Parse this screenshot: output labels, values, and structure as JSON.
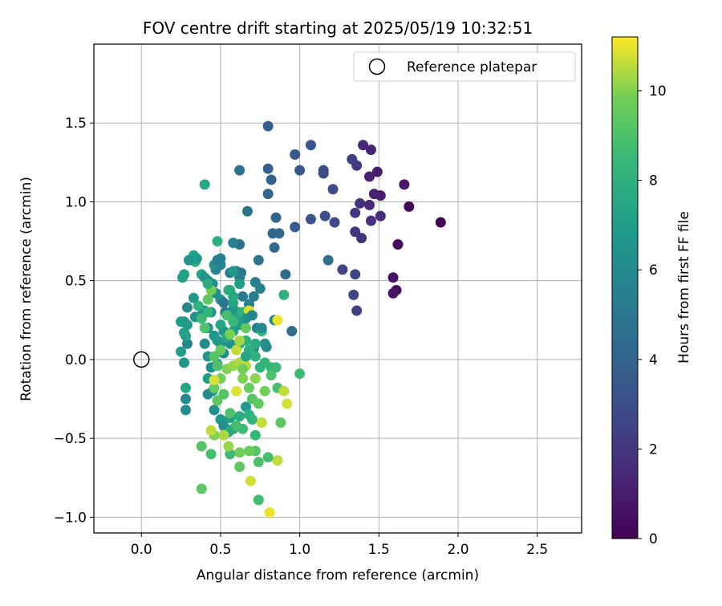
{
  "chart_data": {
    "type": "scatter",
    "title": "FOV centre drift starting at 2025/05/19 10:32:51",
    "xlabel": "Angular distance from reference (arcmin)",
    "ylabel": "Rotation from reference (arcmin)",
    "xlim": [
      -0.3,
      2.78
    ],
    "ylim": [
      -1.1,
      2.0
    ],
    "xticks": [
      0.0,
      0.5,
      1.0,
      1.5,
      2.0,
      2.5
    ],
    "xtick_labels": [
      "0.0",
      "0.5",
      "1.0",
      "1.5",
      "2.0",
      "2.5"
    ],
    "yticks": [
      -1.0,
      -0.5,
      0.0,
      0.5,
      1.0,
      1.5
    ],
    "ytick_labels": [
      "−1.0",
      "−0.5",
      "0.0",
      "0.5",
      "1.0",
      "1.5"
    ],
    "grid": true,
    "legend": {
      "placement": "top-right",
      "entries": [
        {
          "label": "Reference platepar",
          "marker": "open-circle"
        }
      ]
    },
    "reference_point": {
      "x": 0.0,
      "y": 0.0
    },
    "colormap": "viridis",
    "colorbar": {
      "label": "Hours from first FF file",
      "range": [
        0,
        11.2
      ],
      "ticks": [
        0,
        2,
        4,
        6,
        8,
        10
      ],
      "tick_labels": [
        "0",
        "2",
        "4",
        "6",
        "8",
        "10"
      ]
    },
    "points": [
      [
        1.89,
        0.87,
        0.1
      ],
      [
        1.69,
        0.97,
        0.3
      ],
      [
        1.62,
        0.73,
        0.4
      ],
      [
        1.61,
        0.44,
        0.5
      ],
      [
        1.59,
        0.52,
        0.6
      ],
      [
        1.59,
        0.42,
        0.7
      ],
      [
        1.66,
        1.11,
        0.8
      ],
      [
        1.51,
        1.04,
        0.9
      ],
      [
        1.49,
        1.19,
        1.0
      ],
      [
        1.47,
        1.05,
        1.1
      ],
      [
        1.44,
        1.16,
        1.2
      ],
      [
        1.45,
        1.33,
        1.3
      ],
      [
        1.4,
        1.36,
        1.4
      ],
      [
        1.44,
        0.98,
        1.5
      ],
      [
        1.51,
        0.91,
        1.6
      ],
      [
        1.45,
        0.88,
        1.7
      ],
      [
        1.38,
        0.99,
        1.8
      ],
      [
        1.39,
        0.77,
        1.9
      ],
      [
        1.35,
        0.81,
        2.0
      ],
      [
        1.35,
        0.93,
        2.1
      ],
      [
        1.36,
        1.23,
        2.2
      ],
      [
        1.33,
        1.27,
        2.3
      ],
      [
        1.36,
        0.31,
        2.4
      ],
      [
        1.34,
        0.41,
        2.5
      ],
      [
        1.27,
        0.57,
        2.5
      ],
      [
        1.35,
        0.54,
        2.6
      ],
      [
        1.22,
        0.87,
        2.7
      ],
      [
        1.21,
        1.08,
        2.8
      ],
      [
        1.15,
        1.18,
        2.9
      ],
      [
        1.15,
        1.2,
        3.0
      ],
      [
        1.16,
        0.91,
        3.1
      ],
      [
        1.07,
        0.89,
        3.2
      ],
      [
        1.07,
        1.36,
        3.3
      ],
      [
        0.97,
        1.3,
        3.4
      ],
      [
        1.0,
        1.2,
        3.5
      ],
      [
        0.97,
        0.84,
        3.6
      ],
      [
        0.8,
        1.48,
        3.7
      ],
      [
        0.8,
        1.21,
        3.8
      ],
      [
        0.82,
        1.14,
        3.9
      ],
      [
        0.8,
        1.05,
        4.0
      ],
      [
        0.85,
        0.9,
        4.1
      ],
      [
        0.83,
        0.8,
        4.1
      ],
      [
        0.87,
        0.8,
        4.2
      ],
      [
        0.84,
        0.71,
        4.3
      ],
      [
        0.91,
        0.54,
        4.4
      ],
      [
        0.95,
        0.18,
        4.5
      ],
      [
        1.18,
        0.63,
        4.6
      ],
      [
        0.62,
        1.2,
        4.7
      ],
      [
        0.67,
        0.94,
        4.8
      ],
      [
        0.74,
        0.63,
        4.9
      ],
      [
        0.6,
        0.56,
        5.0
      ],
      [
        0.63,
        0.55,
        5.0
      ],
      [
        0.62,
        0.52,
        5.1
      ],
      [
        0.56,
        0.55,
        5.2
      ],
      [
        0.64,
        0.4,
        5.3
      ],
      [
        0.71,
        0.4,
        5.3
      ],
      [
        0.72,
        0.49,
        5.4
      ],
      [
        0.75,
        0.45,
        5.5
      ],
      [
        0.68,
        0.35,
        5.5
      ],
      [
        0.73,
        0.2,
        5.6
      ],
      [
        0.79,
        0.08,
        5.7
      ],
      [
        0.84,
        0.25,
        5.8
      ],
      [
        0.71,
        0.07,
        5.9
      ],
      [
        0.62,
        0.73,
        4.7
      ],
      [
        0.58,
        0.74,
        5.6
      ],
      [
        0.5,
        0.64,
        5.5
      ],
      [
        0.5,
        0.6,
        5.7
      ],
      [
        0.47,
        0.57,
        5.6
      ],
      [
        0.42,
        0.5,
        5.8
      ],
      [
        0.45,
        0.48,
        6.0
      ],
      [
        0.47,
        0.42,
        6.2
      ],
      [
        0.5,
        0.38,
        6.3
      ],
      [
        0.52,
        0.36,
        4.9
      ],
      [
        0.53,
        0.3,
        5.2
      ],
      [
        0.55,
        0.28,
        5.4
      ],
      [
        0.58,
        0.32,
        6.4
      ],
      [
        0.61,
        0.3,
        6.5
      ],
      [
        0.44,
        0.3,
        6.1
      ],
      [
        0.4,
        0.31,
        6.6
      ],
      [
        0.38,
        0.28,
        6.2
      ],
      [
        0.34,
        0.27,
        6.4
      ],
      [
        0.33,
        0.39,
        6.8
      ],
      [
        0.29,
        0.33,
        5.9
      ],
      [
        0.27,
        0.24,
        6.5
      ],
      [
        0.29,
        0.22,
        6.9
      ],
      [
        0.25,
        0.24,
        7.0
      ],
      [
        0.27,
        0.17,
        7.1
      ],
      [
        0.29,
        0.1,
        5.8
      ],
      [
        0.28,
        0.15,
        7.2
      ],
      [
        0.25,
        0.05,
        7.0
      ],
      [
        0.27,
        -0.02,
        6.7
      ],
      [
        0.28,
        -0.18,
        7.3
      ],
      [
        0.28,
        -0.25,
        6.0
      ],
      [
        0.28,
        -0.32,
        6.1
      ],
      [
        0.4,
        0.1,
        6.0
      ],
      [
        0.42,
        0.2,
        6.3
      ],
      [
        0.46,
        0.15,
        6.5
      ],
      [
        0.48,
        0.12,
        6.8
      ],
      [
        0.5,
        0.1,
        6.7
      ],
      [
        0.52,
        0.18,
        6.6
      ],
      [
        0.42,
        0.02,
        6.4
      ],
      [
        0.44,
        -0.05,
        6.2
      ],
      [
        0.48,
        -0.03,
        6.0
      ],
      [
        0.52,
        0.04,
        6.1
      ],
      [
        0.56,
        0.1,
        6.4
      ],
      [
        0.58,
        0.18,
        6.9
      ],
      [
        0.62,
        0.22,
        7.0
      ],
      [
        0.64,
        0.26,
        7.2
      ],
      [
        0.66,
        0.3,
        7.1
      ],
      [
        0.6,
        0.26,
        7.3
      ],
      [
        0.58,
        0.36,
        7.4
      ],
      [
        0.56,
        0.44,
        7.5
      ],
      [
        0.58,
        0.4,
        7.6
      ],
      [
        0.5,
        0.22,
        7.4
      ],
      [
        0.54,
        0.14,
        7.6
      ],
      [
        0.62,
        0.1,
        7.7
      ],
      [
        0.66,
        0.12,
        7.9
      ],
      [
        0.68,
        0.06,
        8.0
      ],
      [
        0.72,
        0.02,
        8.1
      ],
      [
        0.75,
        -0.05,
        8.2
      ],
      [
        0.78,
        -0.02,
        8.3
      ],
      [
        0.82,
        -0.05,
        8.4
      ],
      [
        0.85,
        -0.05,
        8.5
      ],
      [
        1.0,
        -0.09,
        8.6
      ],
      [
        0.9,
        0.41,
        8.0
      ],
      [
        0.76,
        0.18,
        8.3
      ],
      [
        0.4,
        1.11,
        7.6
      ],
      [
        0.48,
        0.75,
        7.9
      ],
      [
        0.42,
        -0.12,
        6.9
      ],
      [
        0.45,
        -0.2,
        7.1
      ],
      [
        0.42,
        -0.22,
        6.0
      ],
      [
        0.46,
        -0.32,
        6.3
      ],
      [
        0.5,
        -0.38,
        6.8
      ],
      [
        0.52,
        -0.42,
        6.2
      ],
      [
        0.56,
        -0.37,
        7.1
      ],
      [
        0.58,
        -0.44,
        7.4
      ],
      [
        0.55,
        -0.46,
        7.6
      ],
      [
        0.62,
        -0.36,
        7.8
      ],
      [
        0.66,
        -0.3,
        6.8
      ],
      [
        0.68,
        -0.35,
        8.0
      ],
      [
        0.7,
        -0.38,
        8.2
      ],
      [
        0.72,
        -0.48,
        8.4
      ],
      [
        0.64,
        -0.44,
        8.6
      ],
      [
        0.6,
        -0.42,
        8.8
      ],
      [
        0.56,
        -0.34,
        9.0
      ],
      [
        0.52,
        -0.22,
        9.2
      ],
      [
        0.48,
        -0.26,
        9.4
      ],
      [
        0.46,
        -0.18,
        9.6
      ],
      [
        0.5,
        -0.12,
        9.8
      ],
      [
        0.54,
        -0.06,
        10.0
      ],
      [
        0.58,
        -0.04,
        10.2
      ],
      [
        0.62,
        -0.02,
        10.4
      ],
      [
        0.64,
        -0.12,
        10.0
      ],
      [
        0.68,
        -0.18,
        9.6
      ],
      [
        0.7,
        -0.25,
        9.2
      ],
      [
        0.74,
        -0.28,
        9.5
      ],
      [
        0.78,
        -0.2,
        9.8
      ],
      [
        0.82,
        -0.1,
        9.0
      ],
      [
        0.86,
        -0.18,
        8.8
      ],
      [
        0.9,
        -0.2,
        10.6
      ],
      [
        0.92,
        -0.28,
        10.8
      ],
      [
        0.88,
        -0.4,
        9.4
      ],
      [
        0.86,
        -0.64,
        10.6
      ],
      [
        0.8,
        -0.62,
        8.8
      ],
      [
        0.74,
        -0.65,
        9.0
      ],
      [
        0.72,
        -0.58,
        9.2
      ],
      [
        0.68,
        -0.58,
        9.6
      ],
      [
        0.62,
        -0.59,
        9.8
      ],
      [
        0.62,
        -0.68,
        9.4
      ],
      [
        0.56,
        -0.6,
        8.6
      ],
      [
        0.55,
        -0.55,
        10.2
      ],
      [
        0.52,
        -0.48,
        10.4
      ],
      [
        0.46,
        -0.48,
        10.0
      ],
      [
        0.44,
        -0.45,
        10.6
      ],
      [
        0.38,
        -0.55,
        9.2
      ],
      [
        0.44,
        -0.6,
        8.8
      ],
      [
        0.38,
        -0.82,
        9.4
      ],
      [
        0.74,
        -0.89,
        8.7
      ],
      [
        0.69,
        -0.77,
        10.8
      ],
      [
        0.81,
        -0.97,
        11.0
      ],
      [
        0.76,
        -0.4,
        10.6
      ],
      [
        0.6,
        -0.2,
        10.9
      ],
      [
        0.66,
        -0.04,
        10.5
      ],
      [
        0.72,
        -0.12,
        10.1
      ],
      [
        0.62,
        0.12,
        10.3
      ],
      [
        0.56,
        0.16,
        9.9
      ],
      [
        0.5,
        0.06,
        9.6
      ],
      [
        0.46,
        0.02,
        9.2
      ],
      [
        0.48,
        -0.04,
        9.0
      ],
      [
        0.42,
        0.38,
        9.4
      ],
      [
        0.44,
        0.44,
        9.8
      ],
      [
        0.54,
        0.28,
        8.8
      ],
      [
        0.58,
        0.24,
        8.5
      ],
      [
        0.64,
        0.3,
        8.3
      ],
      [
        0.68,
        0.31,
        10.8
      ],
      [
        0.66,
        0.2,
        9.6
      ],
      [
        0.6,
        0.06,
        10.6
      ],
      [
        0.64,
        -0.06,
        9.8
      ],
      [
        0.86,
        0.25,
        11.0
      ],
      [
        0.46,
        -0.13,
        10.8
      ],
      [
        0.4,
        0.2,
        9.0
      ],
      [
        0.38,
        0.26,
        8.6
      ],
      [
        0.42,
        0.3,
        8.2
      ],
      [
        0.36,
        0.34,
        8.0
      ],
      [
        0.34,
        0.62,
        7.9
      ],
      [
        0.33,
        0.66,
        7.2
      ],
      [
        0.35,
        0.64,
        6.8
      ],
      [
        0.3,
        0.63,
        6.6
      ],
      [
        0.26,
        0.52,
        7.0
      ],
      [
        0.27,
        0.54,
        7.2
      ],
      [
        0.38,
        0.54,
        7.3
      ],
      [
        0.4,
        0.52,
        6.5
      ],
      [
        0.42,
        0.48,
        7.8
      ],
      [
        0.46,
        0.6,
        6.2
      ],
      [
        0.48,
        0.63,
        5.4
      ],
      [
        0.55,
        0.44,
        7.7
      ],
      [
        0.58,
        0.56,
        6.6
      ],
      [
        0.62,
        0.48,
        7.0
      ],
      [
        0.66,
        0.26,
        6.4
      ],
      [
        0.7,
        0.28,
        5.8
      ],
      [
        0.76,
        0.2,
        6.0
      ],
      [
        0.78,
        0.1,
        6.3
      ],
      [
        0.72,
        0.1,
        7.8
      ],
      [
        0.66,
        0.02,
        7.4
      ]
    ]
  }
}
